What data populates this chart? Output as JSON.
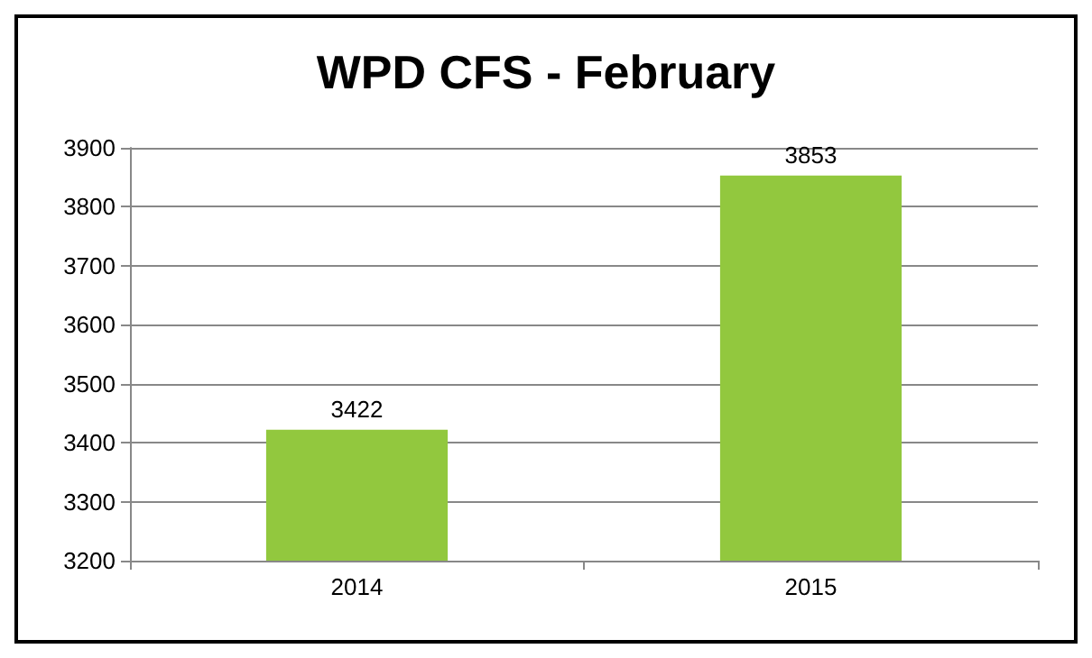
{
  "chart_data": {
    "type": "bar",
    "title": "WPD CFS - February",
    "categories": [
      "2014",
      "2015"
    ],
    "values": [
      3422,
      3853
    ],
    "color": "#92c83e",
    "ylim": [
      3200,
      3900
    ],
    "yticks": [
      3200,
      3300,
      3400,
      3500,
      3600,
      3700,
      3800,
      3900
    ],
    "grid": "y",
    "data_labels": true
  }
}
